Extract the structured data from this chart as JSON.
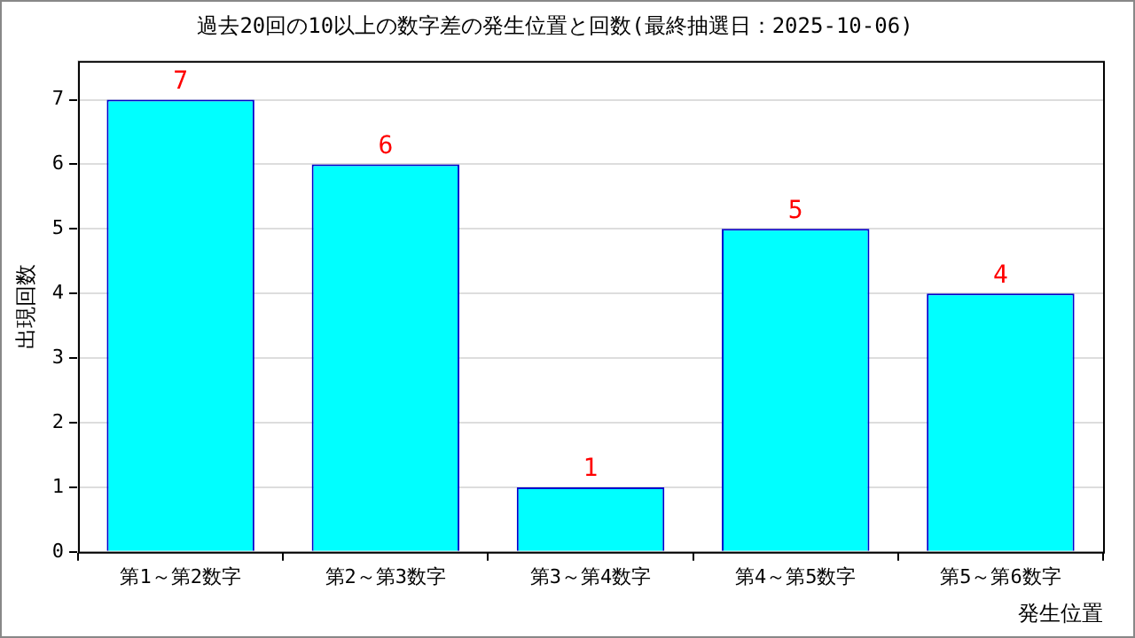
{
  "chart_data": {
    "type": "bar",
    "title": "過去20回の10以上の数字差の発生位置と回数(最終抽選日：2025-10-06)",
    "xlabel": "発生位置",
    "ylabel": "出現回数",
    "categories": [
      "第1～第2数字",
      "第2～第3数字",
      "第3～第4数字",
      "第4～第5数字",
      "第5～第6数字"
    ],
    "values": [
      7,
      6,
      1,
      5,
      4
    ],
    "color": "#00ffff",
    "ylim": [
      0,
      7.6
    ],
    "yticks": [
      0,
      1,
      2,
      3,
      4,
      5,
      6,
      7
    ],
    "grid": "y",
    "data_labels": true,
    "legend": false
  }
}
